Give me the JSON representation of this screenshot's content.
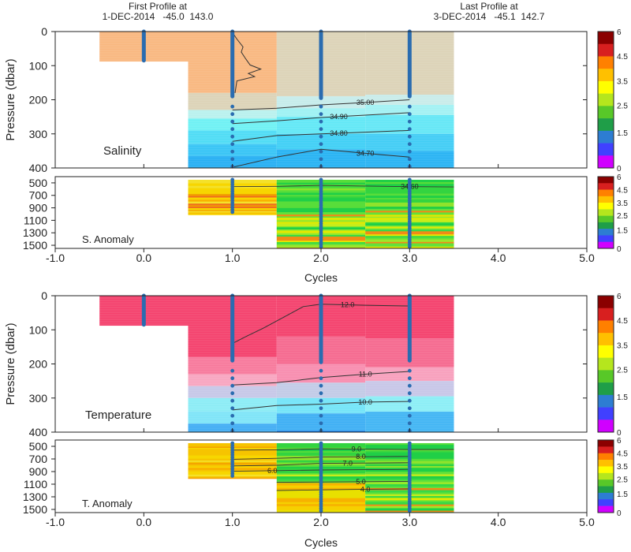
{
  "header": {
    "first_label": "First Profile at",
    "first_value": "1-DEC-2014   -45.0  143.0",
    "last_label": "Last Profile at",
    "last_value": "3-DEC-2014   -45.1  142.7"
  },
  "chart_data": [
    {
      "type": "heatmap",
      "panel": "Salinity",
      "title": "Salinity",
      "xlabel": "Cycles",
      "ylabel": "Pressure (dbar)",
      "xlim": [
        -1.0,
        5.0
      ],
      "xticks": [
        "-1.0",
        "0.0",
        "1.0",
        "2.0",
        "3.0",
        "4.0",
        "5.0"
      ],
      "upper": {
        "ylim": [
          0,
          400
        ],
        "yticks": [
          "0",
          "100",
          "200",
          "300",
          "400"
        ],
        "columns": [
          {
            "cycle": 0,
            "x_range": [
              -0.5,
              0.5
            ],
            "bands": [
              {
                "p": [
                  0,
                  88
                ],
                "color": "#f9b880"
              }
            ]
          },
          {
            "cycle": 1,
            "x_range": [
              0.5,
              1.5
            ],
            "bands": [
              {
                "p": [
                  0,
                  180
                ],
                "color": "#f9b880"
              },
              {
                "p": [
                  180,
                  230
                ],
                "color": "#dcd3b8"
              },
              {
                "p": [
                  230,
                  255
                ],
                "color": "#b9f1ee"
              },
              {
                "p": [
                  255,
                  290
                ],
                "color": "#6ff1f4"
              },
              {
                "p": [
                  290,
                  330
                ],
                "color": "#4fdcf5"
              },
              {
                "p": [
                  330,
                  365
                ],
                "color": "#38c5f5"
              },
              {
                "p": [
                  365,
                  400
                ],
                "color": "#27b0f3"
              }
            ]
          },
          {
            "cycle": 2,
            "x_range": [
              1.5,
              2.5
            ],
            "bands": [
              {
                "p": [
                  0,
                  190
                ],
                "color": "#dcd3b8"
              },
              {
                "p": [
                  190,
                  225
                ],
                "color": "#c6eceb"
              },
              {
                "p": [
                  225,
                  250
                ],
                "color": "#9ef2f3"
              },
              {
                "p": [
                  250,
                  300
                ],
                "color": "#62e8f6"
              },
              {
                "p": [
                  300,
                  345
                ],
                "color": "#41d0f5"
              },
              {
                "p": [
                  345,
                  400
                ],
                "color": "#28b3f3"
              }
            ]
          },
          {
            "cycle": 3,
            "x_range": [
              2.5,
              3.5
            ],
            "bands": [
              {
                "p": [
                  0,
                  185
                ],
                "color": "#dcd3b8"
              },
              {
                "p": [
                  185,
                  215
                ],
                "color": "#c9ecea"
              },
              {
                "p": [
                  215,
                  245
                ],
                "color": "#a3f1f3"
              },
              {
                "p": [
                  245,
                  300
                ],
                "color": "#65e7f6"
              },
              {
                "p": [
                  300,
                  350
                ],
                "color": "#43cdf5"
              },
              {
                "p": [
                  350,
                  400
                ],
                "color": "#2ab3f3"
              }
            ]
          }
        ],
        "contours": [
          {
            "label": "35.00",
            "label_x": 2.5,
            "points": [
              [
                1.0,
                230
              ],
              [
                1.5,
                225
              ],
              [
                2.0,
                215
              ],
              [
                2.5,
                208
              ],
              [
                3.0,
                200
              ]
            ]
          },
          {
            "label": "34.90",
            "label_x": 2.2,
            "points": [
              [
                1.0,
                270
              ],
              [
                1.5,
                262
              ],
              [
                2.0,
                252
              ],
              [
                2.5,
                245
              ],
              [
                3.0,
                238
              ]
            ]
          },
          {
            "label": "34.80",
            "label_x": 2.2,
            "points": [
              [
                1.0,
                322
              ],
              [
                1.5,
                305
              ],
              [
                2.0,
                300
              ],
              [
                2.5,
                295
              ],
              [
                3.0,
                290
              ]
            ]
          },
          {
            "label": "34.70",
            "label_x": 2.5,
            "points": [
              [
                1.0,
                398
              ],
              [
                1.5,
                368
              ],
              [
                2.0,
                345
              ],
              [
                2.5,
                357
              ],
              [
                3.0,
                368
              ]
            ]
          }
        ],
        "profile_line": [
          [
            1.0,
            3
          ],
          [
            1.05,
            22
          ],
          [
            1.12,
            45
          ],
          [
            1.1,
            60
          ],
          [
            1.15,
            80
          ],
          [
            1.2,
            98
          ],
          [
            1.32,
            110
          ],
          [
            1.18,
            123
          ],
          [
            1.25,
            132
          ],
          [
            1.05,
            145
          ],
          [
            1.03,
            180
          ]
        ]
      },
      "anomaly": {
        "label": "S. Anomaly",
        "ylim": [
          400,
          1550
        ],
        "yticks": [
          "500",
          "700",
          "900",
          "1100",
          "1300",
          "1500"
        ],
        "contours": [
          {
            "label": "34.60",
            "label_x": 3.0,
            "points": [
              [
                1.0,
                560
              ],
              [
                1.5,
                555
              ],
              [
                2.0,
                540
              ],
              [
                2.5,
                550
              ],
              [
                3.0,
                560
              ],
              [
                3.5,
                565
              ]
            ]
          }
        ]
      },
      "colorbar": {
        "ticks": [
          "6",
          "4.5",
          "3.5",
          "2.5",
          "1.5",
          "0"
        ]
      },
      "anomaly_colorbar": {
        "ticks": [
          "6",
          "4.5",
          "3.5",
          "2.5",
          "1.5",
          "0"
        ]
      }
    },
    {
      "type": "heatmap",
      "panel": "Temperature",
      "title": "Temperature",
      "xlabel": "Cycles",
      "ylabel": "Pressure (dbar)",
      "xlim": [
        -1.0,
        5.0
      ],
      "xticks": [
        "-1.0",
        "0.0",
        "1.0",
        "2.0",
        "3.0",
        "4.0",
        "5.0"
      ],
      "upper": {
        "ylim": [
          0,
          400
        ],
        "yticks": [
          "0",
          "100",
          "200",
          "300",
          "400"
        ],
        "columns": [
          {
            "cycle": 0,
            "x_range": [
              -0.5,
              0.5
            ],
            "bands": [
              {
                "p": [
                  0,
                  88
                ],
                "color": "#f4426e"
              }
            ]
          },
          {
            "cycle": 1,
            "x_range": [
              0.5,
              1.5
            ],
            "bands": [
              {
                "p": [
                  0,
                  180
                ],
                "color": "#f4426e"
              },
              {
                "p": [
                  180,
                  230
                ],
                "color": "#f77a9d"
              },
              {
                "p": [
                  230,
                  265
                ],
                "color": "#f8a6c0"
              },
              {
                "p": [
                  265,
                  300
                ],
                "color": "#c7c8e8"
              },
              {
                "p": [
                  300,
                  340
                ],
                "color": "#8cecf5"
              },
              {
                "p": [
                  340,
                  375
                ],
                "color": "#7fe4f8"
              },
              {
                "p": [
                  375,
                  400
                ],
                "color": "#43aef4"
              }
            ]
          },
          {
            "cycle": 2,
            "x_range": [
              1.5,
              2.5
            ],
            "bands": [
              {
                "p": [
                  0,
                  120
                ],
                "color": "#f4426e"
              },
              {
                "p": [
                  120,
                  200
                ],
                "color": "#f56a90"
              },
              {
                "p": [
                  200,
                  255
                ],
                "color": "#f88eb0"
              },
              {
                "p": [
                  255,
                  300
                ],
                "color": "#c3cbe7"
              },
              {
                "p": [
                  300,
                  345
                ],
                "color": "#74e4f8"
              },
              {
                "p": [
                  345,
                  395
                ],
                "color": "#3fb0f4"
              },
              {
                "p": [
                  395,
                  400
                ],
                "color": "#1c86ee"
              }
            ]
          },
          {
            "cycle": 3,
            "x_range": [
              2.5,
              3.5
            ],
            "bands": [
              {
                "p": [
                  0,
                  125
                ],
                "color": "#f4426e"
              },
              {
                "p": [
                  125,
                  210
                ],
                "color": "#f56a90"
              },
              {
                "p": [
                  210,
                  250
                ],
                "color": "#f8a0bd"
              },
              {
                "p": [
                  250,
                  295
                ],
                "color": "#c8c7e8"
              },
              {
                "p": [
                  295,
                  340
                ],
                "color": "#8ceef6"
              },
              {
                "p": [
                  340,
                  400
                ],
                "color": "#43b6f4"
              }
            ]
          }
        ],
        "contours": [
          {
            "label": "12.0",
            "label_x": 2.3,
            "points": [
              [
                1.0,
                140
              ],
              [
                1.15,
                120
              ],
              [
                1.35,
                95
              ],
              [
                1.6,
                60
              ],
              [
                1.8,
                32
              ],
              [
                2.0,
                25
              ],
              [
                2.5,
                28
              ],
              [
                3.0,
                30
              ]
            ]
          },
          {
            "label": "11.0",
            "label_x": 2.5,
            "points": [
              [
                1.0,
                262
              ],
              [
                1.5,
                255
              ],
              [
                2.0,
                240
              ],
              [
                2.5,
                230
              ],
              [
                3.0,
                222
              ]
            ]
          },
          {
            "label": "10.0",
            "label_x": 2.5,
            "points": [
              [
                1.0,
                335
              ],
              [
                1.5,
                322
              ],
              [
                2.0,
                318
              ],
              [
                2.5,
                312
              ],
              [
                3.0,
                310
              ]
            ]
          }
        ],
        "profile_line": [
          [
            1.0,
            150
          ],
          [
            1.0,
            140
          ]
        ]
      },
      "anomaly": {
        "label": "T. Anomaly",
        "ylim": [
          400,
          1550
        ],
        "yticks": [
          "500",
          "700",
          "900",
          "1100",
          "1300",
          "1500"
        ],
        "contours": [
          {
            "label": "9.0",
            "label_x": 2.4,
            "points": [
              [
                1.0,
                560
              ],
              [
                1.5,
                555
              ],
              [
                2.0,
                540
              ],
              [
                2.5,
                545
              ],
              [
                3.0,
                550
              ],
              [
                3.5,
                550
              ]
            ]
          },
          {
            "label": "8.0",
            "label_x": 2.45,
            "points": [
              [
                1.0,
                705
              ],
              [
                1.5,
                690
              ],
              [
                2.0,
                670
              ],
              [
                2.5,
                665
              ],
              [
                3.0,
                660
              ]
            ]
          },
          {
            "label": "7.0",
            "label_x": 2.3,
            "points": [
              [
                1.0,
                810
              ],
              [
                1.5,
                800
              ],
              [
                2.0,
                770
              ],
              [
                2.5,
                765
              ],
              [
                3.0,
                760
              ]
            ]
          },
          {
            "label": "6.0",
            "label_x": 1.45,
            "points": [
              [
                1.0,
                895
              ],
              [
                1.5,
                885
              ],
              [
                2.0,
                875
              ],
              [
                2.5,
                870
              ],
              [
                3.0,
                865
              ]
            ]
          },
          {
            "label": "5.0",
            "label_x": 2.45,
            "points": [
              [
                1.5,
                1070
              ],
              [
                2.0,
                1065
              ],
              [
                2.5,
                1060
              ],
              [
                3.0,
                1055
              ]
            ]
          },
          {
            "label": "4.0",
            "label_x": 2.5,
            "points": [
              [
                1.5,
                1200
              ],
              [
                2.0,
                1190
              ],
              [
                2.5,
                1180
              ],
              [
                3.0,
                1175
              ]
            ]
          }
        ]
      },
      "colorbar": {
        "ticks": [
          "6",
          "4.5",
          "3.5",
          "2.5",
          "1.5",
          "0"
        ]
      },
      "anomaly_colorbar": {
        "ticks": [
          "6",
          "4.5",
          "3.5",
          "2.5",
          "1.5",
          "0"
        ]
      }
    }
  ]
}
